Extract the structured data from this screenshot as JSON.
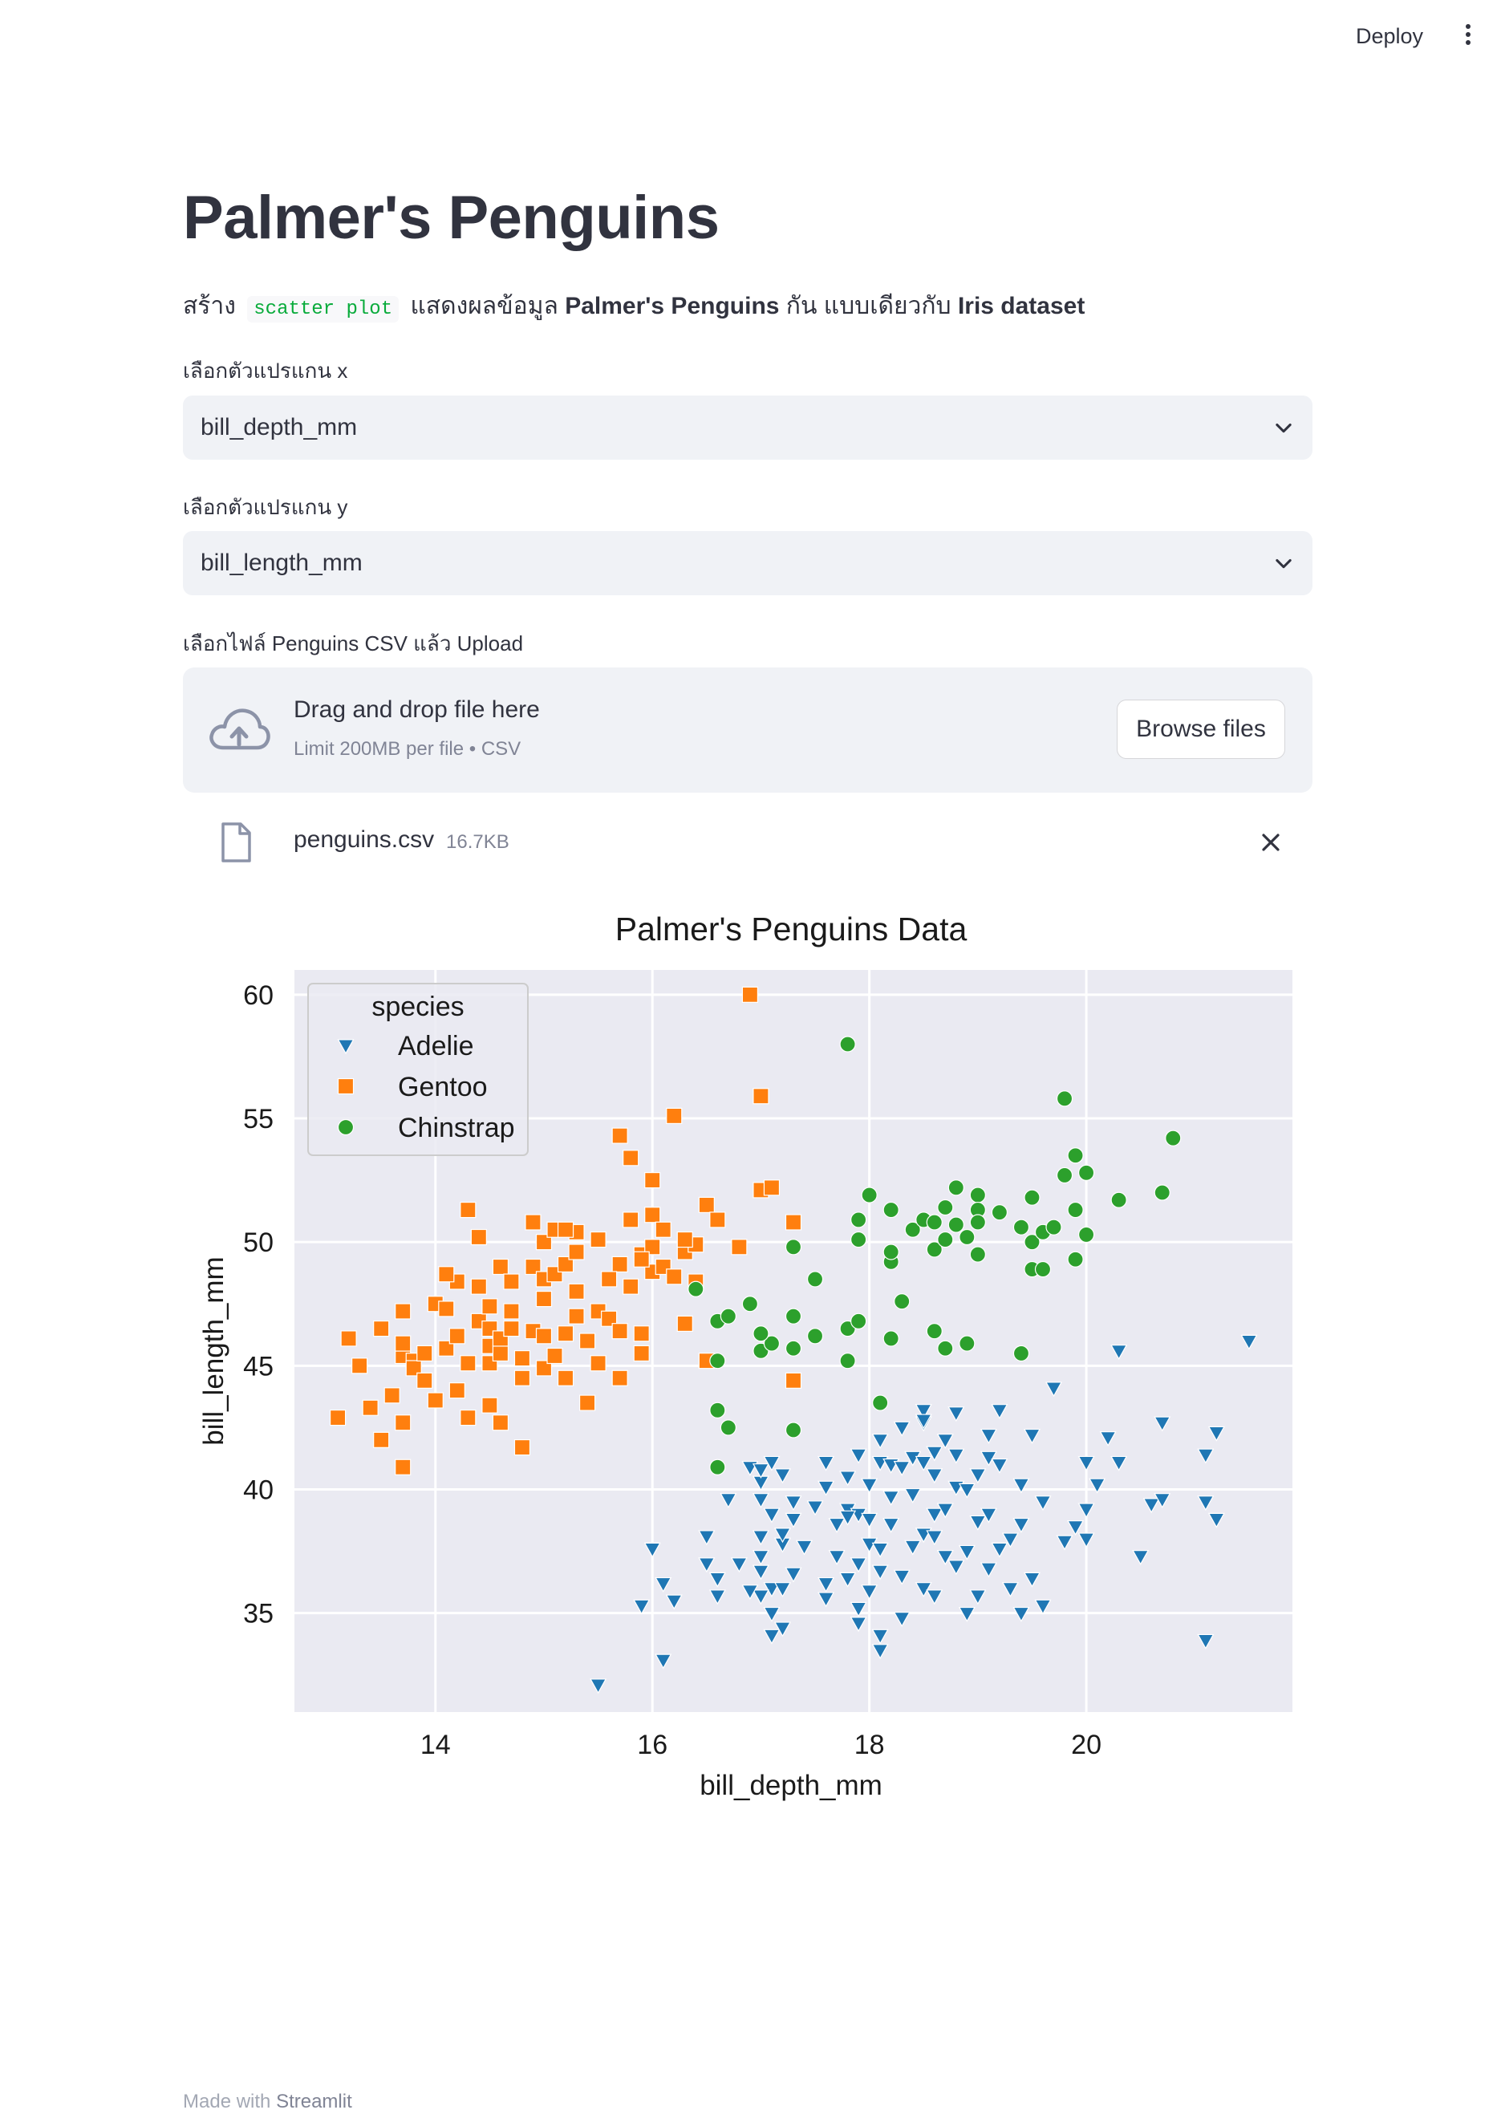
{
  "header": {
    "deploy_label": "Deploy",
    "menu_icon": "more-vertical-icon"
  },
  "page": {
    "title": "Palmer's Penguins",
    "description": {
      "prefix": "สร้าง",
      "code": "scatter plot",
      "middle": "แสดงผลข้อมูล",
      "bold1": "Palmer's Penguins",
      "suffix": "กัน แบบเดียวกับ",
      "bold2": "Iris dataset"
    }
  },
  "x_select": {
    "label": "เลือกตัวแปรแกน x",
    "value": "bill_depth_mm"
  },
  "y_select": {
    "label": "เลือกตัวแปรแกน y",
    "value": "bill_length_mm"
  },
  "uploader": {
    "label": "เลือกไฟล์ Penguins CSV แล้ว Upload",
    "drag_text": "Drag and drop file here",
    "limit_text": "Limit 200MB per file • CSV",
    "browse_label": "Browse files"
  },
  "file": {
    "name": "penguins.csv",
    "size": "16.7KB"
  },
  "footer": {
    "made_with": "Made with",
    "brand": "Streamlit"
  },
  "chart_data": {
    "type": "scatter",
    "title": "Palmer's Penguins Data",
    "xlabel": "bill_depth_mm",
    "ylabel": "bill_length_mm",
    "xlim": [
      12.7,
      21.9
    ],
    "ylim": [
      31.0,
      61.0
    ],
    "xticks": [
      14,
      16,
      18,
      20
    ],
    "yticks": [
      35,
      40,
      45,
      50,
      55,
      60
    ],
    "grid": true,
    "legend": {
      "title": "species",
      "placement": "top-left"
    },
    "series": [
      {
        "name": "Adelie",
        "marker": "triangle-down",
        "color": "#1f77b4",
        "points": [
          [
            15.5,
            32.1
          ],
          [
            16.1,
            33.1
          ],
          [
            15.9,
            35.3
          ],
          [
            16.1,
            36.2
          ],
          [
            16.2,
            35.5
          ],
          [
            16.0,
            37.6
          ],
          [
            16.5,
            38.1
          ],
          [
            16.7,
            39.6
          ],
          [
            16.8,
            37.0
          ],
          [
            16.9,
            40.9
          ],
          [
            16.6,
            36.4
          ],
          [
            16.5,
            37.0
          ],
          [
            16.6,
            35.7
          ],
          [
            17.0,
            37.3
          ],
          [
            17.0,
            38.1
          ],
          [
            17.1,
            39.0
          ],
          [
            17.0,
            39.6
          ],
          [
            17.0,
            40.3
          ],
          [
            17.0,
            40.8
          ],
          [
            17.1,
            41.1
          ],
          [
            17.2,
            40.6
          ],
          [
            17.0,
            36.7
          ],
          [
            17.1,
            36.0
          ],
          [
            17.2,
            37.8
          ],
          [
            17.3,
            38.8
          ],
          [
            17.3,
            39.5
          ],
          [
            17.2,
            38.2
          ],
          [
            17.1,
            35.0
          ],
          [
            17.0,
            35.7
          ],
          [
            17.1,
            34.1
          ],
          [
            17.2,
            36.0
          ],
          [
            17.3,
            36.6
          ],
          [
            16.9,
            35.9
          ],
          [
            17.2,
            34.4
          ],
          [
            17.4,
            37.7
          ],
          [
            17.5,
            39.3
          ],
          [
            17.6,
            40.1
          ],
          [
            17.6,
            41.1
          ],
          [
            17.6,
            36.2
          ],
          [
            17.7,
            37.3
          ],
          [
            17.7,
            38.6
          ],
          [
            17.8,
            39.2
          ],
          [
            17.8,
            40.5
          ],
          [
            17.9,
            41.4
          ],
          [
            17.9,
            39.0
          ],
          [
            17.8,
            38.9
          ],
          [
            17.6,
            35.6
          ],
          [
            17.8,
            36.4
          ],
          [
            17.9,
            37.0
          ],
          [
            17.9,
            35.2
          ],
          [
            17.9,
            34.6
          ],
          [
            18.0,
            35.9
          ],
          [
            18.0,
            37.8
          ],
          [
            18.0,
            38.8
          ],
          [
            18.0,
            40.2
          ],
          [
            18.1,
            41.1
          ],
          [
            18.1,
            42.0
          ],
          [
            18.1,
            37.6
          ],
          [
            18.1,
            36.7
          ],
          [
            18.1,
            34.1
          ],
          [
            18.1,
            33.5
          ],
          [
            18.2,
            38.6
          ],
          [
            18.2,
            39.7
          ],
          [
            18.2,
            41.0
          ],
          [
            18.3,
            42.5
          ],
          [
            18.3,
            40.9
          ],
          [
            18.3,
            36.5
          ],
          [
            18.4,
            37.7
          ],
          [
            18.4,
            39.8
          ],
          [
            18.4,
            41.3
          ],
          [
            18.5,
            42.7
          ],
          [
            18.5,
            43.2
          ],
          [
            18.5,
            41.1
          ],
          [
            18.5,
            38.2
          ],
          [
            18.5,
            36.0
          ],
          [
            18.6,
            35.7
          ],
          [
            18.6,
            38.1
          ],
          [
            18.6,
            39.0
          ],
          [
            18.6,
            40.6
          ],
          [
            18.6,
            41.5
          ],
          [
            18.7,
            42.0
          ],
          [
            18.7,
            37.3
          ],
          [
            18.7,
            39.2
          ],
          [
            18.8,
            36.9
          ],
          [
            18.8,
            40.1
          ],
          [
            18.8,
            41.4
          ],
          [
            18.8,
            43.1
          ],
          [
            18.9,
            35.0
          ],
          [
            18.9,
            37.5
          ],
          [
            18.9,
            40.0
          ],
          [
            19.0,
            40.6
          ],
          [
            19.0,
            38.7
          ],
          [
            19.0,
            35.7
          ],
          [
            19.1,
            36.8
          ],
          [
            19.1,
            39.0
          ],
          [
            19.1,
            41.3
          ],
          [
            19.1,
            42.2
          ],
          [
            19.2,
            43.2
          ],
          [
            19.2,
            41.0
          ],
          [
            19.2,
            37.6
          ],
          [
            19.3,
            36.0
          ],
          [
            19.3,
            38.0
          ],
          [
            19.4,
            38.6
          ],
          [
            19.4,
            40.2
          ],
          [
            19.4,
            35.0
          ],
          [
            19.5,
            42.2
          ],
          [
            19.5,
            36.4
          ],
          [
            19.6,
            39.5
          ],
          [
            19.7,
            44.1
          ],
          [
            19.8,
            37.9
          ],
          [
            19.9,
            38.5
          ],
          [
            20.0,
            38.0
          ],
          [
            20.0,
            39.2
          ],
          [
            20.0,
            41.1
          ],
          [
            20.1,
            40.2
          ],
          [
            20.2,
            42.1
          ],
          [
            20.3,
            41.1
          ],
          [
            20.5,
            37.3
          ],
          [
            20.6,
            39.4
          ],
          [
            20.7,
            39.6
          ],
          [
            20.7,
            42.7
          ],
          [
            21.1,
            33.9
          ],
          [
            21.1,
            39.5
          ],
          [
            21.1,
            41.4
          ],
          [
            21.2,
            38.8
          ],
          [
            21.2,
            42.3
          ],
          [
            21.5,
            46.0
          ],
          [
            20.3,
            45.6
          ],
          [
            19.6,
            35.3
          ],
          [
            18.3,
            34.8
          ],
          [
            18.5,
            42.8
          ]
        ]
      },
      {
        "name": "Gentoo",
        "marker": "square",
        "color": "#ff7f0e",
        "points": [
          [
            13.1,
            42.9
          ],
          [
            13.2,
            46.1
          ],
          [
            13.3,
            45.0
          ],
          [
            13.4,
            43.3
          ],
          [
            13.5,
            46.5
          ],
          [
            13.5,
            42.0
          ],
          [
            13.6,
            43.8
          ],
          [
            13.7,
            47.2
          ],
          [
            13.7,
            45.4
          ],
          [
            13.7,
            40.9
          ],
          [
            13.7,
            42.7
          ],
          [
            13.8,
            45.2
          ],
          [
            13.8,
            44.9
          ],
          [
            13.9,
            45.5
          ],
          [
            13.9,
            44.4
          ],
          [
            14.0,
            43.6
          ],
          [
            14.0,
            47.5
          ],
          [
            14.1,
            45.7
          ],
          [
            14.1,
            47.3
          ],
          [
            14.2,
            48.4
          ],
          [
            14.2,
            46.2
          ],
          [
            14.2,
            44.0
          ],
          [
            14.3,
            51.3
          ],
          [
            14.3,
            45.1
          ],
          [
            14.3,
            42.9
          ],
          [
            14.4,
            50.2
          ],
          [
            14.4,
            46.8
          ],
          [
            14.4,
            48.2
          ],
          [
            14.5,
            45.8
          ],
          [
            14.5,
            47.4
          ],
          [
            14.5,
            46.5
          ],
          [
            14.5,
            43.4
          ],
          [
            14.5,
            45.1
          ],
          [
            14.6,
            42.7
          ],
          [
            14.6,
            45.5
          ],
          [
            14.6,
            49.0
          ],
          [
            14.6,
            46.1
          ],
          [
            14.7,
            48.4
          ],
          [
            14.7,
            47.2
          ],
          [
            14.7,
            46.5
          ],
          [
            14.8,
            45.3
          ],
          [
            14.8,
            41.7
          ],
          [
            14.8,
            44.5
          ],
          [
            14.9,
            46.4
          ],
          [
            14.9,
            49.0
          ],
          [
            15.0,
            46.2
          ],
          [
            15.0,
            47.7
          ],
          [
            15.0,
            48.5
          ],
          [
            15.0,
            50.0
          ],
          [
            15.0,
            44.9
          ],
          [
            15.1,
            45.4
          ],
          [
            15.1,
            48.7
          ],
          [
            15.1,
            50.5
          ],
          [
            15.2,
            46.3
          ],
          [
            15.2,
            49.1
          ],
          [
            15.2,
            44.5
          ],
          [
            15.3,
            47.0
          ],
          [
            15.3,
            50.4
          ],
          [
            15.3,
            49.6
          ],
          [
            15.3,
            48.0
          ],
          [
            15.4,
            43.5
          ],
          [
            15.4,
            46.0
          ],
          [
            15.5,
            50.1
          ],
          [
            15.5,
            47.2
          ],
          [
            15.5,
            45.1
          ],
          [
            15.6,
            46.9
          ],
          [
            15.7,
            49.1
          ],
          [
            15.7,
            46.4
          ],
          [
            15.7,
            44.5
          ],
          [
            15.7,
            54.3
          ],
          [
            15.8,
            50.9
          ],
          [
            15.8,
            53.4
          ],
          [
            15.8,
            48.2
          ],
          [
            15.9,
            49.5
          ],
          [
            15.9,
            45.5
          ],
          [
            15.9,
            46.3
          ],
          [
            16.0,
            49.8
          ],
          [
            16.0,
            48.8
          ],
          [
            16.0,
            51.1
          ],
          [
            16.0,
            52.5
          ],
          [
            16.1,
            49.0
          ],
          [
            16.1,
            50.5
          ],
          [
            16.2,
            48.6
          ],
          [
            16.2,
            55.1
          ],
          [
            16.3,
            46.7
          ],
          [
            16.3,
            49.6
          ],
          [
            16.4,
            49.9
          ],
          [
            16.4,
            48.4
          ],
          [
            16.5,
            45.2
          ],
          [
            16.5,
            51.5
          ],
          [
            16.6,
            50.9
          ],
          [
            16.8,
            49.8
          ],
          [
            16.9,
            60.0
          ],
          [
            17.0,
            52.1
          ],
          [
            17.0,
            55.9
          ],
          [
            17.1,
            52.2
          ],
          [
            17.3,
            50.8
          ],
          [
            17.3,
            44.4
          ],
          [
            14.9,
            50.8
          ],
          [
            15.2,
            50.5
          ],
          [
            16.3,
            50.1
          ],
          [
            15.6,
            48.5
          ],
          [
            15.9,
            49.3
          ],
          [
            14.1,
            48.7
          ],
          [
            13.7,
            45.9
          ]
        ]
      },
      {
        "name": "Chinstrap",
        "marker": "circle",
        "color": "#2ca02c",
        "points": [
          [
            16.4,
            48.1
          ],
          [
            16.6,
            46.8
          ],
          [
            16.6,
            45.2
          ],
          [
            16.6,
            43.2
          ],
          [
            16.7,
            42.5
          ],
          [
            16.7,
            47.0
          ],
          [
            16.9,
            47.5
          ],
          [
            16.6,
            40.9
          ],
          [
            17.0,
            45.6
          ],
          [
            17.1,
            45.9
          ],
          [
            17.0,
            46.3
          ],
          [
            17.3,
            45.7
          ],
          [
            17.3,
            47.0
          ],
          [
            17.3,
            49.8
          ],
          [
            17.3,
            42.4
          ],
          [
            17.5,
            46.2
          ],
          [
            17.5,
            48.5
          ],
          [
            17.8,
            58.0
          ],
          [
            17.8,
            46.5
          ],
          [
            17.8,
            45.2
          ],
          [
            17.9,
            46.8
          ],
          [
            17.9,
            50.9
          ],
          [
            17.9,
            50.1
          ],
          [
            18.0,
            51.9
          ],
          [
            18.1,
            43.5
          ],
          [
            18.2,
            46.1
          ],
          [
            18.2,
            49.2
          ],
          [
            18.2,
            49.6
          ],
          [
            18.2,
            51.3
          ],
          [
            18.3,
            47.6
          ],
          [
            18.4,
            50.5
          ],
          [
            18.5,
            50.9
          ],
          [
            18.6,
            50.8
          ],
          [
            18.6,
            49.7
          ],
          [
            18.6,
            46.4
          ],
          [
            18.7,
            45.7
          ],
          [
            18.7,
            50.1
          ],
          [
            18.7,
            51.4
          ],
          [
            18.8,
            52.2
          ],
          [
            18.8,
            50.7
          ],
          [
            18.9,
            50.2
          ],
          [
            18.9,
            45.9
          ],
          [
            19.0,
            51.9
          ],
          [
            19.0,
            51.3
          ],
          [
            19.0,
            50.8
          ],
          [
            19.0,
            49.5
          ],
          [
            19.2,
            51.2
          ],
          [
            19.4,
            50.6
          ],
          [
            19.4,
            45.5
          ],
          [
            19.5,
            51.8
          ],
          [
            19.5,
            50.0
          ],
          [
            19.5,
            48.9
          ],
          [
            19.6,
            48.9
          ],
          [
            19.6,
            50.4
          ],
          [
            19.7,
            50.6
          ],
          [
            19.8,
            52.7
          ],
          [
            19.8,
            55.8
          ],
          [
            19.9,
            53.5
          ],
          [
            19.9,
            51.3
          ],
          [
            19.9,
            49.3
          ],
          [
            20.0,
            52.8
          ],
          [
            20.0,
            50.3
          ],
          [
            20.3,
            51.7
          ],
          [
            20.7,
            52.0
          ],
          [
            20.8,
            54.2
          ]
        ]
      }
    ]
  }
}
